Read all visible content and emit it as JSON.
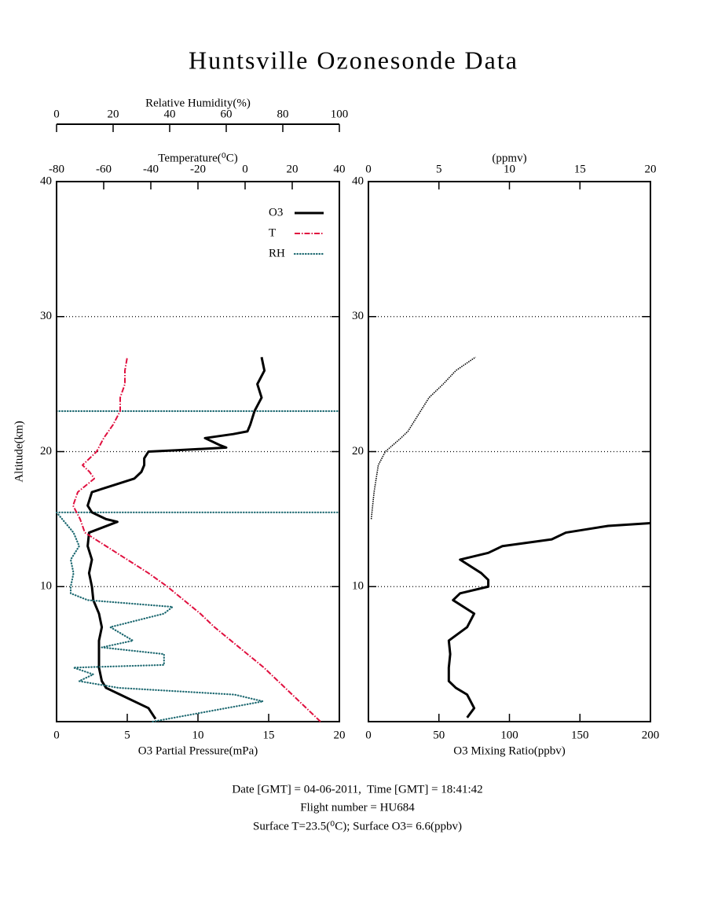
{
  "title": "Huntsville Ozonesonde Data",
  "footer": [
    "Date [GMT] = 04-06-2011,  Time [GMT] = 18:41:42",
    "Flight number = HU684",
    "Surface T=23.5(⁰C); Surface O3= 6.6(ppbv)"
  ],
  "chart_data": [
    {
      "type": "line",
      "xlabel": "O3 Partial Pressure(mPa)",
      "xlim": [
        0,
        20
      ],
      "xticks": [
        0,
        5,
        10,
        15,
        20
      ],
      "x2label": "Temperature(⁰C)",
      "x2lim": [
        -80,
        40
      ],
      "x2ticks": [
        -80,
        -60,
        -40,
        -20,
        0,
        20,
        40
      ],
      "x3label": "Relative Humidity(%)",
      "x3lim": [
        0,
        100
      ],
      "x3ticks": [
        0,
        20,
        40,
        60,
        80,
        100
      ],
      "ylabel": "Altitude(km)",
      "ylim": [
        0,
        40
      ],
      "yticks": [
        10,
        20,
        30,
        40
      ],
      "grid": true,
      "hlines": [
        15.5,
        23
      ],
      "hline_color": "#1f6a72",
      "legend": "upper right",
      "series": [
        {
          "name": "O3",
          "color": "#000000",
          "style": "solid",
          "axis": "x",
          "y": [
            0.2,
            1,
            2,
            2.5,
            3,
            4,
            5,
            6,
            7,
            8,
            9,
            10,
            11,
            12,
            13,
            14,
            14.8,
            15,
            15.5,
            16,
            17,
            17.5,
            18,
            18.5,
            19,
            19.5,
            20,
            20.1,
            20.3,
            20.5,
            21,
            21.3,
            21.5,
            22,
            23,
            24,
            25,
            26,
            27
          ],
          "values": [
            7.0,
            6.5,
            4.5,
            3.5,
            3.2,
            3.0,
            3.0,
            3.0,
            3.2,
            3.0,
            2.6,
            2.5,
            2.3,
            2.5,
            2.2,
            2.3,
            4.3,
            3.5,
            2.5,
            2.2,
            2.5,
            4.0,
            5.5,
            6.0,
            6.2,
            6.2,
            6.5,
            8.5,
            12.0,
            11.5,
            10.5,
            12.5,
            13.5,
            13.7,
            14.0,
            14.5,
            14.2,
            14.7,
            14.5
          ]
        },
        {
          "name": "T",
          "color": "#e0103f",
          "style": "dashdot",
          "axis": "x2",
          "y": [
            0,
            1,
            2,
            3,
            4,
            5,
            6,
            7,
            8,
            9,
            10,
            11,
            12,
            13,
            14,
            15,
            16,
            17,
            18,
            18.5,
            19,
            20,
            21,
            22,
            23,
            24,
            25,
            26,
            27
          ],
          "values": [
            32,
            26,
            20,
            14,
            8,
            1,
            -6,
            -13,
            -19,
            -26,
            -33,
            -41,
            -50,
            -59,
            -68,
            -70,
            -73,
            -71,
            -64,
            -66,
            -69,
            -63,
            -60,
            -56,
            -53,
            -53,
            -51,
            -51,
            -50
          ]
        },
        {
          "name": "RH",
          "color": "#1f6a72",
          "style": "dotted",
          "axis": "x3",
          "y": [
            0,
            0.5,
            1.5,
            2,
            2.5,
            3,
            3.5,
            4,
            4.2,
            5,
            5.5,
            6,
            7,
            8,
            8.5,
            9,
            9.5,
            10,
            11,
            12,
            13,
            14,
            15,
            15.5
          ],
          "values": [
            34,
            47,
            73,
            63,
            22,
            8,
            13,
            6,
            38,
            38,
            16,
            27,
            19,
            38,
            41,
            11,
            5,
            5,
            6,
            5,
            8,
            6,
            2,
            0
          ]
        }
      ]
    },
    {
      "type": "line",
      "xlabel": "O3 Mixing Ratio(ppbv)",
      "xlim": [
        0,
        200
      ],
      "xticks": [
        0,
        50,
        100,
        150,
        200
      ],
      "x2label": "(ppmv)",
      "x2lim": [
        0,
        20
      ],
      "x2ticks": [
        0,
        5,
        10,
        15,
        20
      ],
      "ylim": [
        0,
        40
      ],
      "yticks": [
        10,
        20,
        30,
        40
      ],
      "grid": true,
      "series": [
        {
          "color": "#000000",
          "style": "solid",
          "axis": "x",
          "y": [
            0.3,
            1,
            2,
            2.5,
            3,
            4,
            5,
            6,
            7,
            8,
            9,
            9.5,
            10,
            10.5,
            11,
            12,
            12.5,
            13,
            13.5,
            14,
            14.5,
            14.7
          ],
          "values": [
            70,
            75,
            70,
            62,
            57,
            57,
            58,
            57,
            70,
            75,
            60,
            65,
            85,
            85,
            80,
            65,
            85,
            95,
            130,
            140,
            170,
            200
          ]
        },
        {
          "color": "#000000",
          "style": "thin",
          "axis": "x2",
          "y": [
            15,
            17,
            19,
            20,
            21,
            21.5,
            22,
            23,
            24,
            25,
            26,
            27
          ],
          "values": [
            0.2,
            0.4,
            0.7,
            1.2,
            2.3,
            2.8,
            3.1,
            3.7,
            4.3,
            5.3,
            6.2,
            7.6
          ]
        }
      ]
    }
  ]
}
